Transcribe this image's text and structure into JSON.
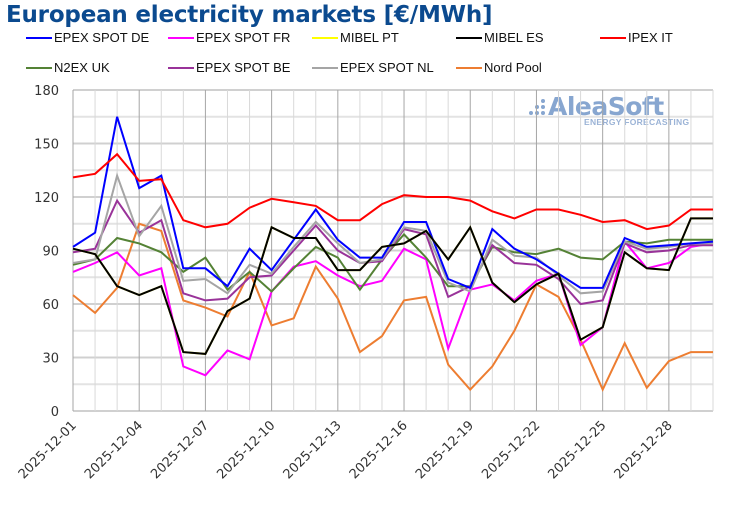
{
  "title": "European electricity markets [€/MWh]",
  "logo": {
    "name": "AleaSoft",
    "tagline": "ENERGY FORECASTING"
  },
  "chart_data": {
    "type": "line",
    "title": "European electricity markets [€/MWh]",
    "xlabel": "",
    "ylabel": "€/MWh",
    "ylim": [
      0,
      180
    ],
    "yticks": [
      0,
      30,
      60,
      90,
      120,
      150,
      180
    ],
    "grid": true,
    "legend_position": "top",
    "x": [
      "2025-12-01",
      "2025-12-02",
      "2025-12-03",
      "2025-12-04",
      "2025-12-05",
      "2025-12-06",
      "2025-12-07",
      "2025-12-08",
      "2025-12-09",
      "2025-12-10",
      "2025-12-11",
      "2025-12-12",
      "2025-12-13",
      "2025-12-14",
      "2025-12-15",
      "2025-12-16",
      "2025-12-17",
      "2025-12-18",
      "2025-12-19",
      "2025-12-20",
      "2025-12-21",
      "2025-12-22",
      "2025-12-23",
      "2025-12-24",
      "2025-12-25",
      "2025-12-26",
      "2025-12-27",
      "2025-12-28",
      "2025-12-29",
      "2025-12-30"
    ],
    "xtick_labels": [
      "2025-12-01",
      "2025-12-04",
      "2025-12-07",
      "2025-12-10",
      "2025-12-13",
      "2025-12-16",
      "2025-12-19",
      "2025-12-22",
      "2025-12-25",
      "2025-12-28"
    ],
    "series": [
      {
        "name": "EPEX SPOT DE",
        "color": "#0000ff",
        "values": [
          92,
          100,
          165,
          125,
          132,
          80,
          80,
          70,
          91,
          79,
          96,
          113,
          96,
          86,
          86,
          106,
          106,
          74,
          69,
          102,
          91,
          85,
          77,
          69,
          69,
          97,
          92,
          93,
          94,
          95
        ]
      },
      {
        "name": "EPEX SPOT FR",
        "color": "#ff00ff",
        "values": [
          78,
          83,
          89,
          76,
          80,
          25,
          20,
          34,
          29,
          67,
          81,
          84,
          76,
          70,
          73,
          91,
          85,
          35,
          68,
          71,
          62,
          73,
          77,
          37,
          47,
          95,
          80,
          83,
          92,
          94
        ]
      },
      {
        "name": "MIBEL PT",
        "color": "#ffff00",
        "values": [
          91,
          88,
          70,
          65,
          70,
          33,
          32,
          56,
          63,
          103,
          97,
          97,
          79,
          79,
          92,
          94,
          101,
          85,
          103,
          72,
          61,
          71,
          77,
          40,
          47,
          89,
          80,
          79,
          108,
          108
        ]
      },
      {
        "name": "MIBEL ES",
        "color": "#000000",
        "values": [
          91,
          88,
          70,
          65,
          70,
          33,
          32,
          56,
          63,
          103,
          97,
          97,
          79,
          79,
          92,
          94,
          101,
          85,
          103,
          72,
          61,
          71,
          77,
          40,
          47,
          89,
          80,
          79,
          108,
          108
        ]
      },
      {
        "name": "IPEX IT",
        "color": "#ff0000",
        "values": [
          131,
          133,
          144,
          129,
          130,
          107,
          103,
          105,
          114,
          119,
          117,
          115,
          107,
          107,
          116,
          121,
          120,
          120,
          118,
          112,
          108,
          113,
          113,
          110,
          106,
          107,
          102,
          104,
          113,
          113
        ]
      },
      {
        "name": "N2EX UK",
        "color": "#548235",
        "values": [
          82,
          85,
          97,
          94,
          89,
          78,
          86,
          68,
          78,
          67,
          80,
          92,
          86,
          68,
          85,
          99,
          86,
          70,
          70,
          92,
          89,
          88,
          91,
          86,
          85,
          95,
          94,
          96,
          96,
          96
        ]
      },
      {
        "name": "EPEX SPOT BE",
        "color": "#993399",
        "values": [
          89,
          91,
          118,
          100,
          107,
          66,
          62,
          63,
          75,
          76,
          90,
          104,
          90,
          83,
          84,
          102,
          99,
          64,
          70,
          93,
          83,
          82,
          74,
          60,
          62,
          94,
          89,
          90,
          93,
          93
        ]
      },
      {
        "name": "EPEX SPOT NL",
        "color": "#a5a5a5",
        "values": [
          83,
          85,
          132,
          98,
          115,
          73,
          74,
          66,
          82,
          77,
          92,
          106,
          94,
          83,
          85,
          103,
          101,
          72,
          67,
          96,
          87,
          86,
          76,
          66,
          67,
          95,
          91,
          92,
          94,
          94
        ]
      },
      {
        "name": "Nord Pool",
        "color": "#ed7d31",
        "values": [
          65,
          55,
          69,
          105,
          101,
          62,
          58,
          53,
          78,
          48,
          52,
          81,
          63,
          33,
          42,
          62,
          64,
          26,
          12,
          25,
          45,
          71,
          64,
          40,
          12,
          38,
          13,
          28,
          33,
          33
        ]
      }
    ]
  }
}
